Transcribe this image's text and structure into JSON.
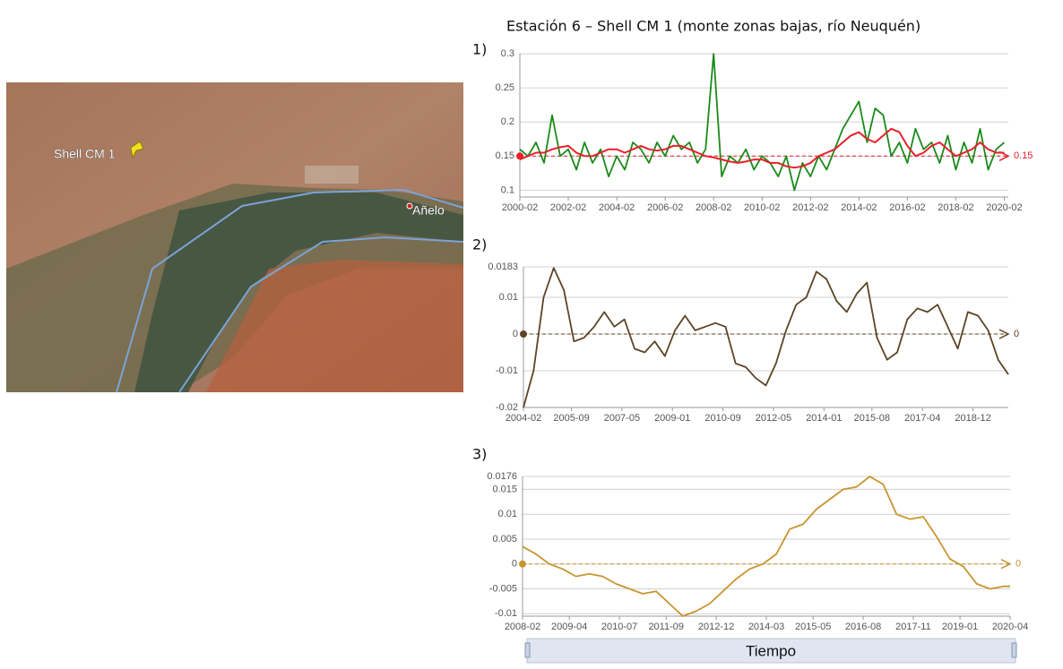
{
  "title": "Estación 6 – Shell CM 1 (monte zonas bajas, río Neuquén)",
  "map": {
    "labels": [
      "Shell CM 1",
      "Añelo"
    ]
  },
  "slider_label": "Tiempo",
  "chart_data": [
    {
      "type": "line",
      "panel": "1)",
      "x": [
        "2000-02",
        "2000-06",
        "2000-10",
        "2001-02",
        "2001-06",
        "2001-10",
        "2002-02",
        "2002-06",
        "2002-10",
        "2003-02",
        "2003-06",
        "2003-10",
        "2004-02",
        "2004-06",
        "2004-10",
        "2005-02",
        "2005-06",
        "2005-10",
        "2006-02",
        "2006-06",
        "2006-10",
        "2007-02",
        "2007-06",
        "2007-10",
        "2008-02",
        "2008-06",
        "2008-10",
        "2009-02",
        "2009-06",
        "2009-10",
        "2010-02",
        "2010-06",
        "2010-10",
        "2011-02",
        "2011-06",
        "2011-10",
        "2012-02",
        "2012-06",
        "2012-10",
        "2013-02",
        "2013-06",
        "2013-10",
        "2014-02",
        "2014-06",
        "2014-10",
        "2015-02",
        "2015-06",
        "2015-10",
        "2016-02",
        "2016-06",
        "2016-10",
        "2017-02",
        "2017-06",
        "2017-10",
        "2018-02",
        "2018-06",
        "2018-10",
        "2019-02",
        "2019-06",
        "2019-10",
        "2020-02"
      ],
      "series": [
        {
          "color": "#1a8a1a",
          "values": [
            0.16,
            0.15,
            0.17,
            0.14,
            0.21,
            0.15,
            0.16,
            0.13,
            0.17,
            0.14,
            0.16,
            0.12,
            0.15,
            0.13,
            0.17,
            0.16,
            0.14,
            0.17,
            0.15,
            0.18,
            0.16,
            0.17,
            0.14,
            0.16,
            0.3,
            0.12,
            0.15,
            0.14,
            0.16,
            0.13,
            0.15,
            0.14,
            0.12,
            0.15,
            0.1,
            0.14,
            0.12,
            0.15,
            0.13,
            0.16,
            0.19,
            0.21,
            0.23,
            0.17,
            0.22,
            0.21,
            0.15,
            0.17,
            0.14,
            0.19,
            0.16,
            0.17,
            0.14,
            0.18,
            0.13,
            0.17,
            0.14,
            0.19,
            0.13,
            0.16,
            0.17
          ]
        },
        {
          "color": "#e8202a",
          "values": [
            0.145,
            0.15,
            0.155,
            0.155,
            0.16,
            0.163,
            0.165,
            0.155,
            0.15,
            0.15,
            0.155,
            0.16,
            0.16,
            0.155,
            0.16,
            0.165,
            0.16,
            0.158,
            0.16,
            0.165,
            0.165,
            0.16,
            0.155,
            0.15,
            0.148,
            0.145,
            0.142,
            0.14,
            0.142,
            0.145,
            0.145,
            0.14,
            0.14,
            0.135,
            0.133,
            0.135,
            0.14,
            0.15,
            0.155,
            0.16,
            0.17,
            0.18,
            0.185,
            0.175,
            0.17,
            0.18,
            0.19,
            0.185,
            0.165,
            0.15,
            0.155,
            0.165,
            0.17,
            0.16,
            0.15,
            0.155,
            0.16,
            0.17,
            0.16,
            0.155,
            0.155
          ]
        }
      ],
      "ref_line": 0.15,
      "ref_color": "#e8202a",
      "xlim": [
        "2000-02",
        "2020-04"
      ],
      "xticks": [
        "2000-02",
        "2002-02",
        "2004-02",
        "2006-02",
        "2008-02",
        "2010-02",
        "2012-02",
        "2014-02",
        "2016-02",
        "2018-02",
        "2020-02"
      ],
      "ylim": [
        0.09,
        0.3
      ],
      "yticks": [
        0.1,
        0.15,
        0.2,
        0.25,
        0.3
      ],
      "grid": true
    },
    {
      "type": "line",
      "panel": "2)",
      "x": [
        "2004-02",
        "2004-06",
        "2004-10",
        "2005-02",
        "2005-06",
        "2005-10",
        "2006-02",
        "2006-06",
        "2006-10",
        "2007-02",
        "2007-06",
        "2007-10",
        "2008-02",
        "2008-06",
        "2008-10",
        "2009-02",
        "2009-06",
        "2009-10",
        "2010-02",
        "2010-06",
        "2010-10",
        "2011-02",
        "2011-06",
        "2011-10",
        "2012-02",
        "2012-06",
        "2012-10",
        "2013-02",
        "2013-06",
        "2013-10",
        "2014-02",
        "2014-06",
        "2014-10",
        "2015-02",
        "2015-06",
        "2015-10",
        "2016-02",
        "2016-06",
        "2016-10",
        "2017-02",
        "2017-06",
        "2017-10",
        "2018-02",
        "2018-06",
        "2018-10",
        "2019-02",
        "2019-06",
        "2019-10",
        "2020-02"
      ],
      "series": [
        {
          "color": "#5c4425",
          "values": [
            -0.02,
            -0.01,
            0.01,
            0.018,
            0.012,
            -0.002,
            -0.001,
            0.002,
            0.006,
            0.002,
            0.004,
            -0.004,
            -0.005,
            -0.002,
            -0.006,
            0.001,
            0.005,
            0.001,
            0.002,
            0.003,
            0.002,
            -0.008,
            -0.009,
            -0.012,
            -0.014,
            -0.008,
            0.001,
            0.008,
            0.01,
            0.017,
            0.015,
            0.009,
            0.006,
            0.011,
            0.014,
            -0.001,
            -0.007,
            -0.005,
            0.004,
            0.007,
            0.006,
            0.008,
            0.002,
            -0.004,
            0.006,
            0.005,
            0.001,
            -0.007,
            -0.011
          ]
        }
      ],
      "ref_line": 0,
      "ref_color": "#5c4425",
      "xlim": [
        "2004-02",
        "2020-02"
      ],
      "xticks": [
        "2004-02",
        "2005-09",
        "2007-05",
        "2009-01",
        "2010-09",
        "2012-05",
        "2014-01",
        "2015-08",
        "2017-04",
        "2018-12"
      ],
      "ylim": [
        -0.02,
        0.0183
      ],
      "yticks": [
        -0.02,
        -0.01,
        0,
        0.01,
        0.0183
      ],
      "grid": true
    },
    {
      "type": "line",
      "panel": "3)",
      "x": [
        "2008-02",
        "2008-06",
        "2008-10",
        "2009-02",
        "2009-06",
        "2009-10",
        "2010-02",
        "2010-06",
        "2010-10",
        "2011-02",
        "2011-06",
        "2011-10",
        "2012-02",
        "2012-06",
        "2012-10",
        "2013-02",
        "2013-06",
        "2013-10",
        "2014-02",
        "2014-06",
        "2014-10",
        "2015-02",
        "2015-06",
        "2015-10",
        "2016-02",
        "2016-06",
        "2016-10",
        "2017-02",
        "2017-06",
        "2017-10",
        "2018-02",
        "2018-06",
        "2018-10",
        "2019-02",
        "2019-06",
        "2019-10",
        "2020-02",
        "2020-04"
      ],
      "series": [
        {
          "color": "#c8952f",
          "values": [
            0.0035,
            0.002,
            0.0,
            -0.001,
            -0.0025,
            -0.002,
            -0.0025,
            -0.004,
            -0.005,
            -0.006,
            -0.0055,
            -0.008,
            -0.0105,
            -0.0095,
            -0.008,
            -0.0055,
            -0.003,
            -0.001,
            0.0,
            0.002,
            0.007,
            0.008,
            0.011,
            0.013,
            0.015,
            0.0155,
            0.0176,
            0.016,
            0.01,
            0.009,
            0.0095,
            0.0055,
            0.001,
            -0.0005,
            -0.004,
            -0.005,
            -0.0045,
            -0.0045
          ]
        }
      ],
      "ref_line": 0,
      "ref_color": "#c8952f",
      "xlim": [
        "2008-02",
        "2020-04"
      ],
      "xticks": [
        "2008-02",
        "2009-04",
        "2010-07",
        "2011-09",
        "2012-12",
        "2014-03",
        "2015-05",
        "2016-08",
        "2017-11",
        "2019-01",
        "2020-04"
      ],
      "ylim": [
        -0.0105,
        0.0176
      ],
      "yticks": [
        -0.01,
        -0.005,
        0,
        0.005,
        0.01,
        0.015,
        0.0176
      ],
      "grid": true
    }
  ]
}
